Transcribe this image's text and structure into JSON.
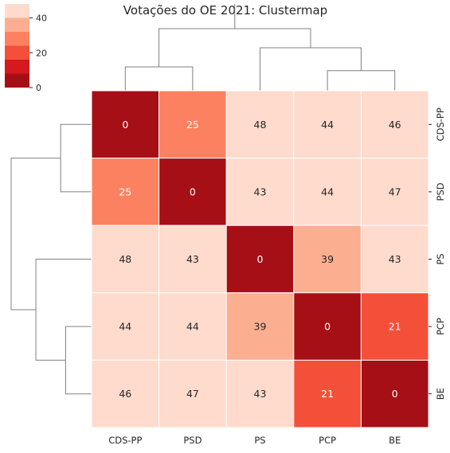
{
  "chart_data": {
    "type": "heatmap",
    "title": "Votações do OE 2021: Clustermap",
    "row_labels": [
      "CDS-PP",
      "PSD",
      "PS",
      "PCP",
      "BE"
    ],
    "col_labels": [
      "CDS-PP",
      "PSD",
      "PS",
      "PCP",
      "BE"
    ],
    "values": [
      [
        0,
        25,
        48,
        44,
        46
      ],
      [
        25,
        0,
        43,
        44,
        47
      ],
      [
        48,
        43,
        0,
        39,
        43
      ],
      [
        44,
        44,
        39,
        0,
        21
      ],
      [
        46,
        47,
        43,
        21,
        0
      ]
    ],
    "colorbar": {
      "ticks": [
        "0",
        "20",
        "40"
      ],
      "range": [
        0,
        48
      ],
      "bins": [
        {
          "from": 0,
          "to": 8,
          "color": "#a50f15"
        },
        {
          "from": 8,
          "to": 16,
          "color": "#d5191d"
        },
        {
          "from": 16,
          "to": 24,
          "color": "#f44f39"
        },
        {
          "from": 24,
          "to": 32,
          "color": "#fc8161"
        },
        {
          "from": 32,
          "to": 40,
          "color": "#fcae91"
        },
        {
          "from": 40,
          "to": 48,
          "color": "#fedbcc"
        }
      ]
    },
    "dendrogram": {
      "order": [
        "CDS-PP",
        "PSD",
        "PS",
        "PCP",
        "BE"
      ],
      "merges": [
        {
          "left": "PCP",
          "right": "BE",
          "height": 21
        },
        {
          "left": "CDS-PP",
          "right": "PSD",
          "height": 25
        },
        {
          "left": "PS",
          "right": "PCP+BE",
          "height": 45
        },
        {
          "left": "CDS-PP+PSD",
          "right": "PS+PCP+BE",
          "height": 65
        }
      ]
    }
  }
}
